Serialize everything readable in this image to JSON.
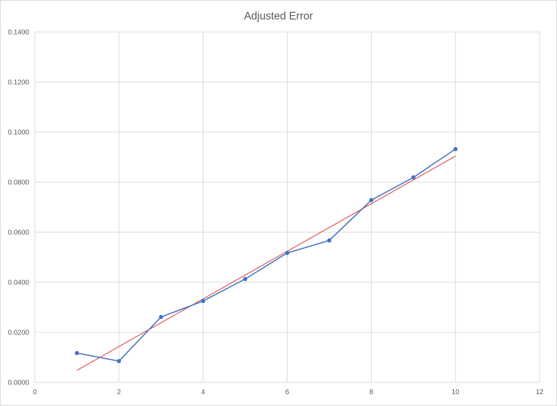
{
  "chart_data": {
    "type": "scatter",
    "title": "Adjusted Error",
    "xlabel": "",
    "ylabel": "",
    "xlim": [
      0,
      12
    ],
    "ylim": [
      0,
      0.14
    ],
    "x_ticks": [
      "0",
      "2",
      "4",
      "6",
      "8",
      "10",
      "12"
    ],
    "y_ticks": [
      "0.0000",
      "0.0200",
      "0.0400",
      "0.0600",
      "0.0800",
      "0.1000",
      "0.1200",
      "0.1400"
    ],
    "grid": true,
    "legend": "none",
    "series": [
      {
        "style": "line-with-markers",
        "color": "#4472c4",
        "x": [
          1,
          2,
          3,
          4,
          5,
          6,
          7,
          8,
          9,
          10
        ],
        "y": [
          0.0117,
          0.0085,
          0.0261,
          0.0325,
          0.0413,
          0.0517,
          0.0567,
          0.0728,
          0.0819,
          0.0932
        ]
      },
      {
        "style": "linear-trendline",
        "color": "#e05050",
        "x": [
          1,
          10
        ],
        "y": [
          0.0048,
          0.0904
        ]
      }
    ]
  }
}
